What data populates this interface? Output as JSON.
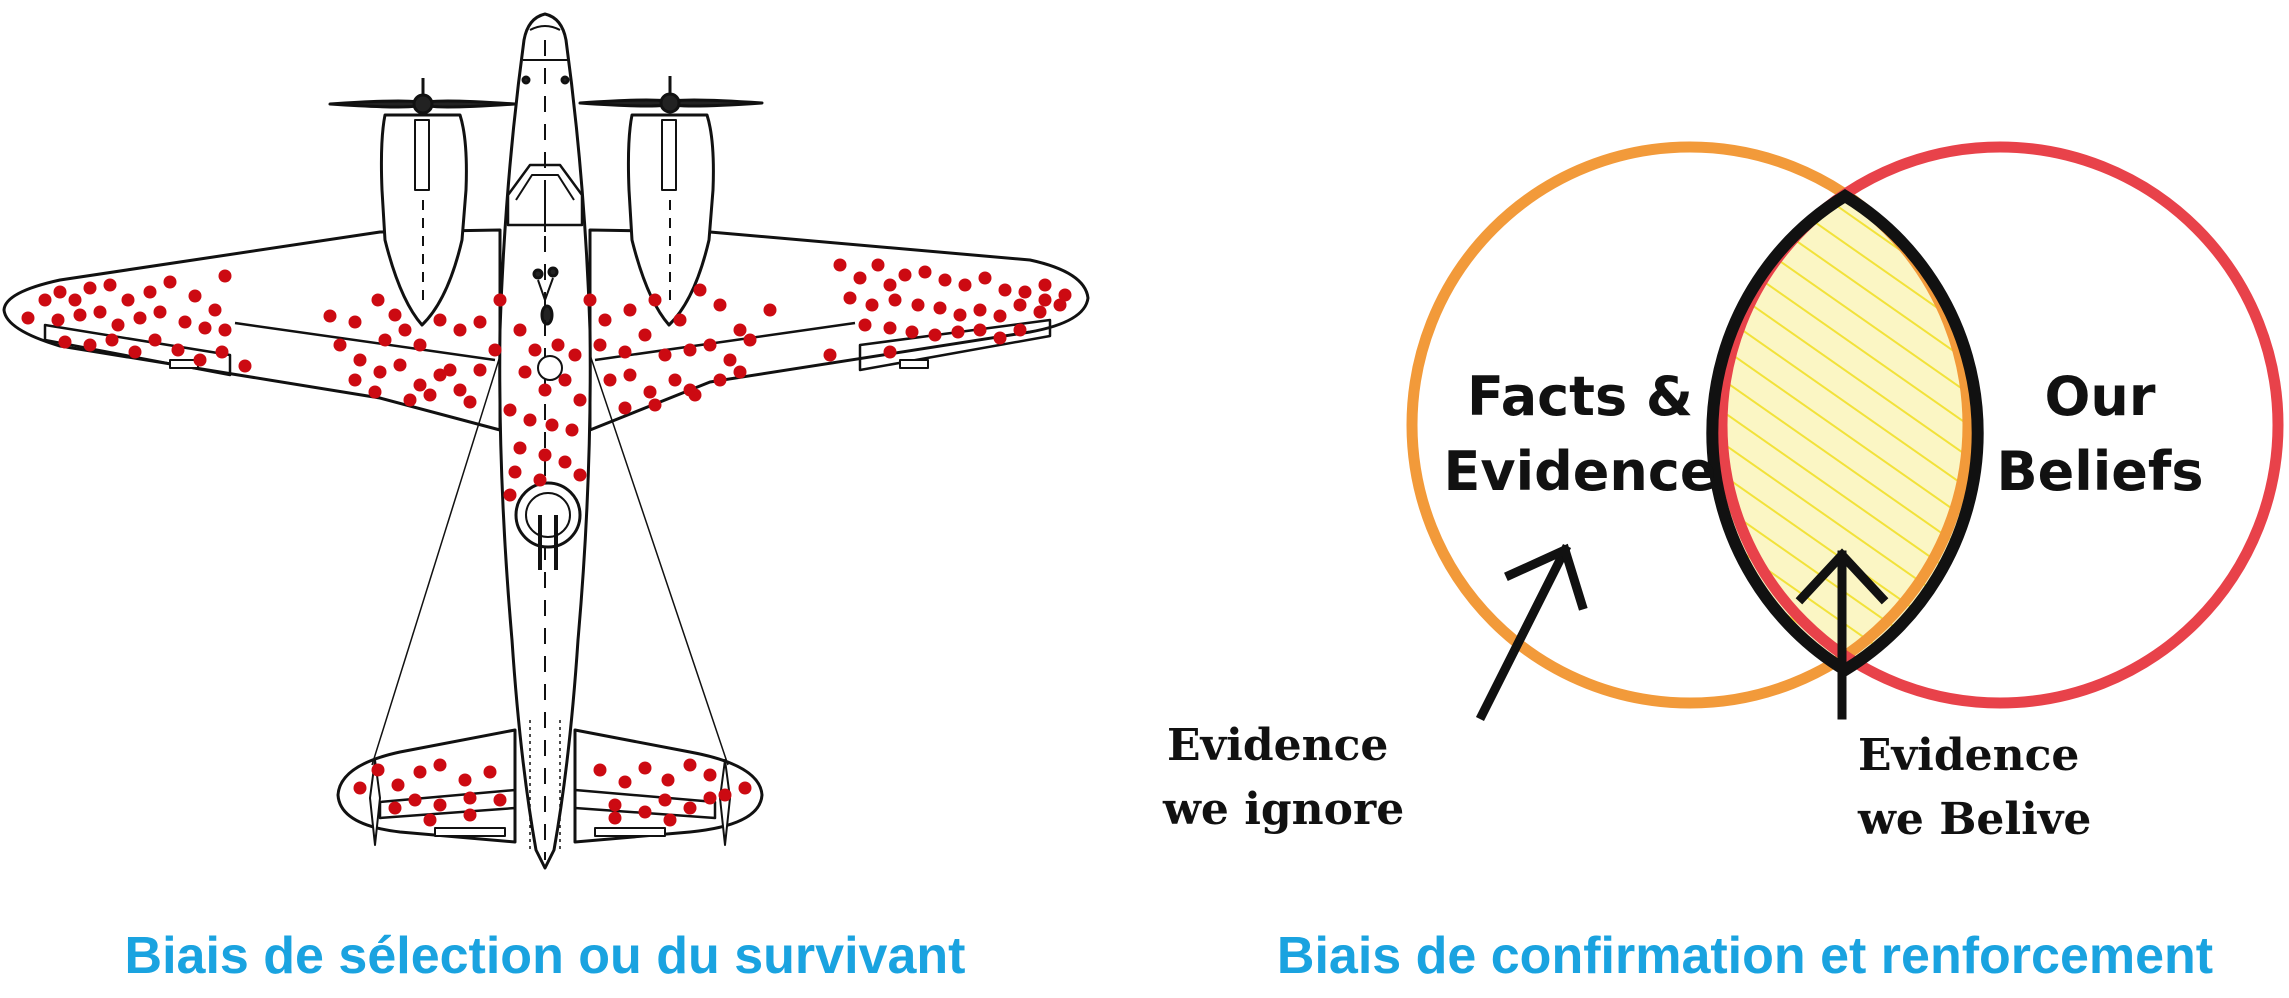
{
  "colors": {
    "hit_dot": "#cc0a12",
    "facts_circle": "#f29a3a",
    "beliefs_circle": "#e8424a",
    "overlap_hatch": "#f2e23a",
    "overlap_fill": "#fbf6c4",
    "caption": "#1aa3e0"
  },
  "left_panel": {
    "caption": "Biais de sélection ou du survivant",
    "illustration": "bomber-airplane-with-bullet-holes"
  },
  "right_panel": {
    "caption": "Biais de confirmation et renforcement",
    "venn": {
      "left_circle_label": [
        "Facts &",
        "Evidence"
      ],
      "right_circle_label": [
        "Our",
        "Beliefs"
      ],
      "arrow_left_label": [
        "Evidence",
        "we ignore"
      ],
      "arrow_right_label": [
        "Evidence",
        "we Belive"
      ]
    }
  }
}
